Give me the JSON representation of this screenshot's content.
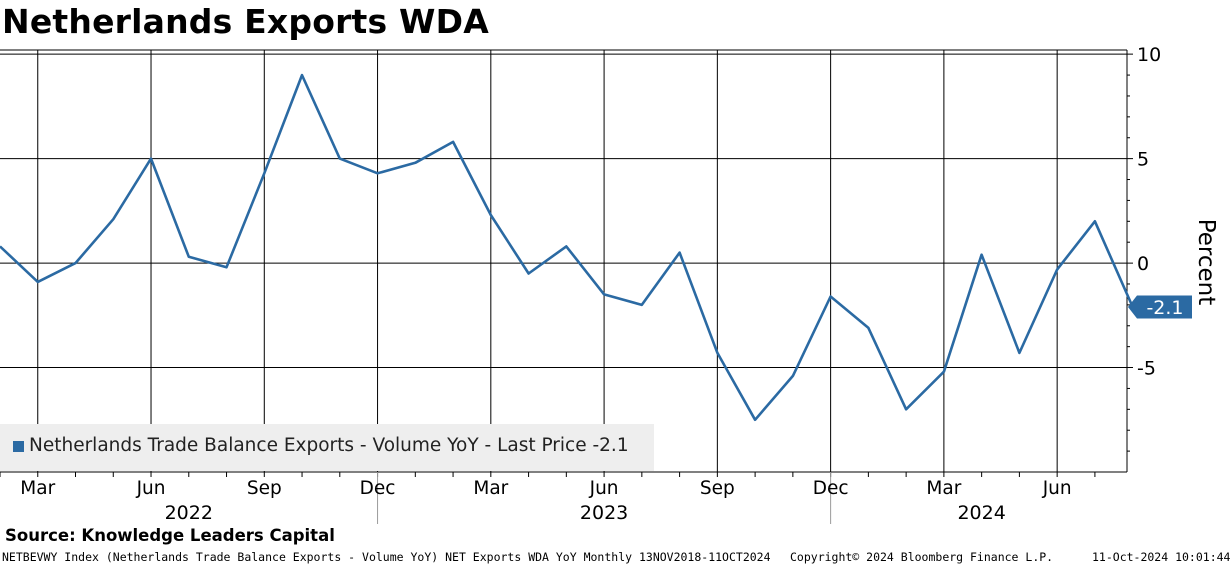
{
  "header": {
    "title": "Netherlands Exports WDA"
  },
  "chart_data": {
    "type": "line",
    "title": "Netherlands Exports WDA",
    "ylabel": "Percent",
    "xlabel": "",
    "ylim": [
      -10,
      10.2
    ],
    "yticks": [
      10,
      5,
      0,
      -5
    ],
    "y_axis_side": "right",
    "grid": true,
    "x_month_index_range": [
      0,
      29.85
    ],
    "month_ticks": [
      {
        "label": "Mar",
        "i": 1
      },
      {
        "label": "Jun",
        "i": 4
      },
      {
        "label": "Sep",
        "i": 7
      },
      {
        "label": "Dec",
        "i": 10
      },
      {
        "label": "Mar",
        "i": 13
      },
      {
        "label": "Jun",
        "i": 16
      },
      {
        "label": "Sep",
        "i": 19
      },
      {
        "label": "Dec",
        "i": 22
      },
      {
        "label": "Mar",
        "i": 25
      },
      {
        "label": "Jun",
        "i": 28
      }
    ],
    "years": [
      {
        "label": "2022",
        "center_i": 5
      },
      {
        "label": "2023",
        "center_i": 16
      },
      {
        "label": "2024",
        "center_i": 26
      }
    ],
    "year_separators_i": [
      10,
      22
    ],
    "series": [
      {
        "name": "Netherlands Trade Balance Exports - Volume YoY - Last Price -2.1",
        "color": "#2b6aa3",
        "x": [
          "Feb 2022",
          "Mar 2022",
          "Apr 2022",
          "May 2022",
          "Jun 2022",
          "Jul 2022",
          "Aug 2022",
          "Sep 2022",
          "Oct 2022",
          "Nov 2022",
          "Dec 2022",
          "Jan 2023",
          "Feb 2023",
          "Mar 2023",
          "Apr 2023",
          "May 2023",
          "Jun 2023",
          "Jul 2023",
          "Aug 2023",
          "Sep 2023",
          "Oct 2023",
          "Nov 2023",
          "Dec 2023",
          "Jan 2024",
          "Feb 2024",
          "Mar 2024",
          "Apr 2024",
          "May 2024",
          "Jun 2024",
          "Jul 2024",
          "Aug 2024"
        ],
        "values": [
          0.8,
          -0.9,
          0.0,
          2.1,
          5.0,
          0.3,
          -0.2,
          4.3,
          9.0,
          5.0,
          4.3,
          4.8,
          5.8,
          2.3,
          -0.5,
          0.8,
          -1.5,
          -2.0,
          0.5,
          -4.3,
          -7.5,
          -5.4,
          -1.6,
          -3.1,
          -7.0,
          -5.2,
          0.4,
          -4.3,
          -0.3,
          2.0,
          -2.1
        ]
      }
    ],
    "last_value_label": "-2.1",
    "legend": "bottom-left"
  },
  "legend": {
    "label": "Netherlands Trade Balance Exports - Volume YoY - Last Price -2.1"
  },
  "footer": {
    "source": "Source: Knowledge Leaders Capital",
    "index_info": "NETBEVWY Index (Netherlands Trade Balance Exports - Volume YoY) NET Exports WDA YoY  Monthly 13NOV2018-11OCT2024",
    "copyright": "Copyright© 2024 Bloomberg Finance L.P.",
    "timestamp": "11-Oct-2024 10:01:44"
  }
}
